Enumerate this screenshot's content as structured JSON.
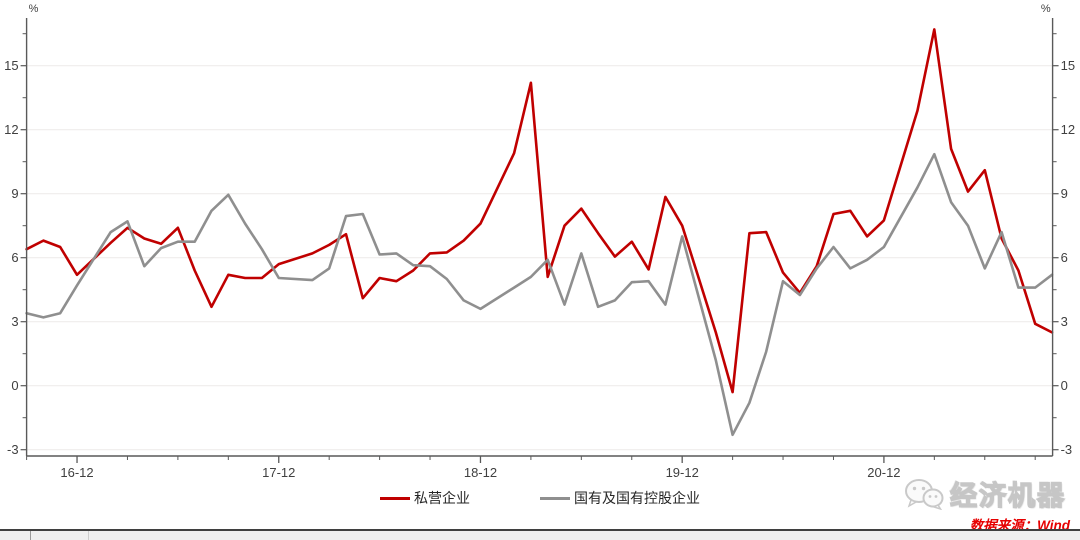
{
  "chart_data": {
    "type": "line",
    "title": "",
    "unit_label": "%",
    "grid": "horizontal-only",
    "legend_position": "bottom-center",
    "ylim": [
      -3,
      17.2
    ],
    "y_ticks": [
      -3,
      0,
      3,
      6,
      9,
      12,
      15
    ],
    "x_tick_labels": [
      "16-12",
      "17-12",
      "18-12",
      "19-12",
      "20-12"
    ],
    "x_major_offsets": [
      3,
      15,
      27,
      39,
      51
    ],
    "x_months": [
      "2016-09",
      "2016-10",
      "2016-11",
      "2016-12",
      "2017-02",
      "2017-03",
      "2017-04",
      "2017-05",
      "2017-06",
      "2017-07",
      "2017-08",
      "2017-09",
      "2017-10",
      "2017-11",
      "2017-12",
      "2018-02",
      "2018-03",
      "2018-04",
      "2018-05",
      "2018-06",
      "2018-07",
      "2018-08",
      "2018-09",
      "2018-10",
      "2018-11",
      "2018-12",
      "2019-02",
      "2019-03",
      "2019-04",
      "2019-05",
      "2019-06",
      "2019-07",
      "2019-08",
      "2019-09",
      "2019-10",
      "2019-11",
      "2019-12",
      "2020-02",
      "2020-03",
      "2020-04",
      "2020-05",
      "2020-06",
      "2020-07",
      "2020-08",
      "2020-09",
      "2020-10",
      "2020-11",
      "2020-12",
      "2021-02",
      "2021-03",
      "2021-04",
      "2021-05",
      "2021-06",
      "2021-07",
      "2021-08",
      "2021-09",
      "2021-10"
    ],
    "month_offsets": [
      0,
      1,
      2,
      3,
      5,
      6,
      7,
      8,
      9,
      10,
      11,
      12,
      13,
      14,
      15,
      17,
      18,
      19,
      20,
      21,
      22,
      23,
      24,
      25,
      26,
      27,
      29,
      30,
      31,
      32,
      33,
      34,
      35,
      36,
      37,
      38,
      39,
      41,
      42,
      43,
      44,
      45,
      46,
      47,
      48,
      49,
      50,
      51,
      53,
      54,
      55,
      56,
      57,
      58,
      59,
      60,
      61
    ],
    "series": [
      {
        "name": "私营企业",
        "color": "#c00000",
        "values": [
          6.4,
          6.8,
          6.5,
          5.2,
          6.7,
          7.4,
          6.9,
          6.65,
          7.4,
          5.4,
          3.7,
          5.2,
          5.05,
          5.05,
          5.7,
          6.2,
          6.6,
          7.1,
          4.1,
          5.05,
          4.9,
          5.4,
          6.2,
          6.25,
          6.8,
          7.6,
          10.9,
          14.2,
          5.1,
          7.5,
          8.3,
          7.15,
          6.05,
          6.75,
          5.45,
          8.85,
          7.5,
          2.5,
          -0.3,
          7.15,
          7.2,
          5.3,
          4.35,
          5.6,
          8.05,
          8.2,
          7.0,
          7.75,
          12.9,
          16.7,
          11.1,
          9.1,
          10.1,
          6.9,
          5.4,
          2.9,
          2.5
        ]
      },
      {
        "name": "国有及国有控股企业",
        "color": "#8f8f8f",
        "values": [
          3.4,
          3.2,
          3.4,
          4.7,
          7.2,
          7.7,
          5.6,
          6.45,
          6.75,
          6.75,
          8.2,
          8.95,
          7.6,
          6.4,
          5.05,
          4.95,
          5.5,
          7.95,
          8.05,
          6.15,
          6.2,
          5.65,
          5.6,
          5.0,
          4.0,
          3.6,
          4.6,
          5.1,
          5.9,
          3.8,
          6.2,
          3.7,
          4.0,
          4.85,
          4.9,
          3.8,
          7.0,
          1.2,
          -2.3,
          -0.8,
          1.6,
          4.9,
          4.25,
          5.5,
          6.5,
          5.5,
          5.9,
          6.5,
          9.3,
          10.85,
          8.6,
          7.5,
          5.5,
          7.2,
          4.6,
          4.6,
          5.2
        ]
      }
    ]
  },
  "footer": {
    "watermark_text": "经济机器",
    "source_text": "数据来源：Wind"
  },
  "colors": {
    "series_private": "#c00000",
    "series_state": "#8f8f8f",
    "axis": "#595959",
    "tick_text": "#404040",
    "gridline": "#efedec",
    "source_text": "#e60000"
  }
}
